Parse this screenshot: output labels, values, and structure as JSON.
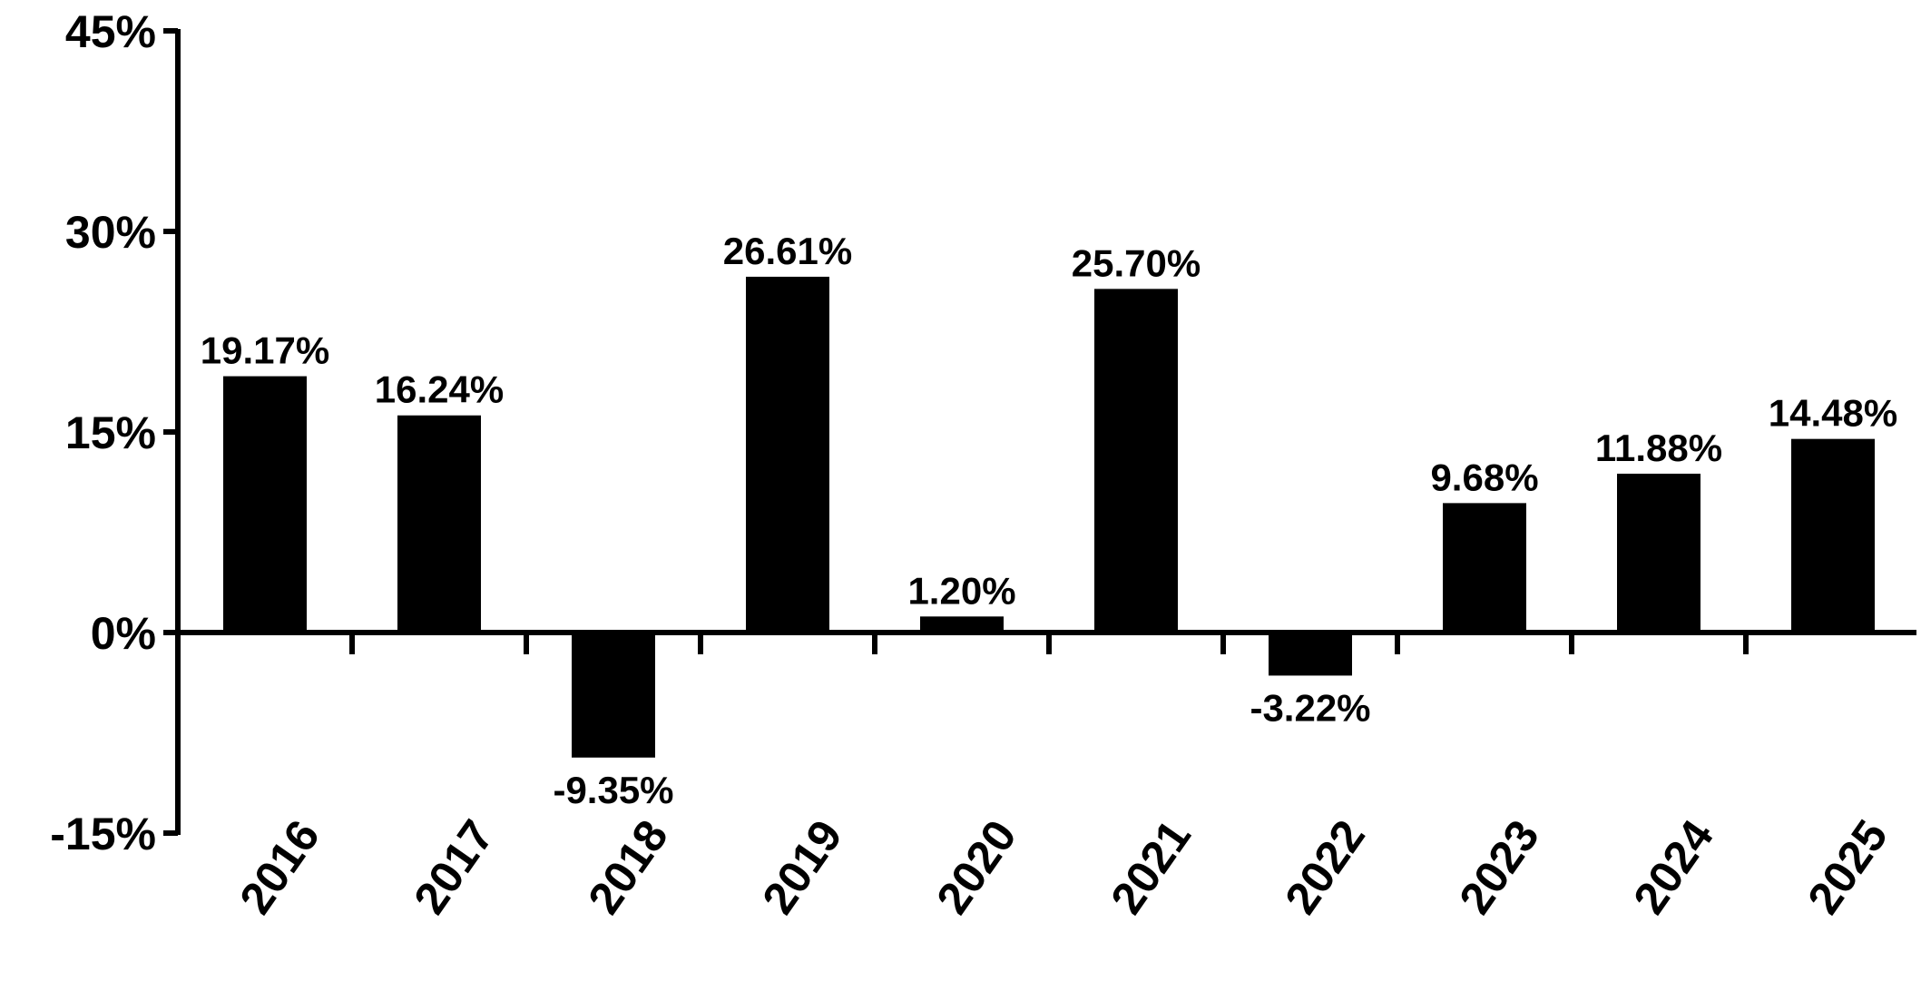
{
  "chart_data": {
    "type": "bar",
    "categories": [
      "2016",
      "2017",
      "2018",
      "2019",
      "2020",
      "2021",
      "2022",
      "2023",
      "2024",
      "2025"
    ],
    "values": [
      19.17,
      16.24,
      -9.35,
      26.61,
      1.2,
      25.7,
      -3.22,
      9.68,
      11.88,
      14.48
    ],
    "data_labels": [
      "19.17%",
      "16.24%",
      "-9.35%",
      "26.61%",
      "1.20%",
      "25.70%",
      "-3.22%",
      "9.68%",
      "11.88%",
      "14.48%"
    ],
    "yticks": [
      45,
      30,
      15,
      0,
      -15
    ],
    "ytick_labels": [
      "45%",
      "30%",
      "15%",
      "0%",
      "-15%"
    ],
    "ylim": [
      -15,
      45
    ],
    "title": "",
    "xlabel": "",
    "ylabel": "",
    "grid": false,
    "bar_color": "#000000"
  }
}
